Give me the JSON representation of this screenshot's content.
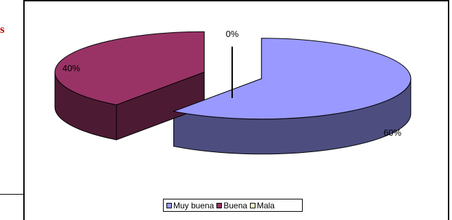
{
  "fragment_text": "s",
  "fragment_color": "#c00000",
  "chart_data": {
    "type": "pie",
    "style": "3d-exploded",
    "categories": [
      "Muy buena",
      "Buena",
      "Mala"
    ],
    "values": [
      60,
      40,
      0
    ],
    "labels": [
      "60%",
      "40%",
      "0%"
    ],
    "colors": {
      "top": [
        "#9999ff",
        "#993366",
        "#ffffcc"
      ],
      "side": [
        "#4d4d80",
        "#4d1a33",
        "#808066"
      ]
    },
    "legend": {
      "position": "bottom",
      "items": [
        "Muy buena",
        "Buena",
        "Mala"
      ]
    }
  }
}
